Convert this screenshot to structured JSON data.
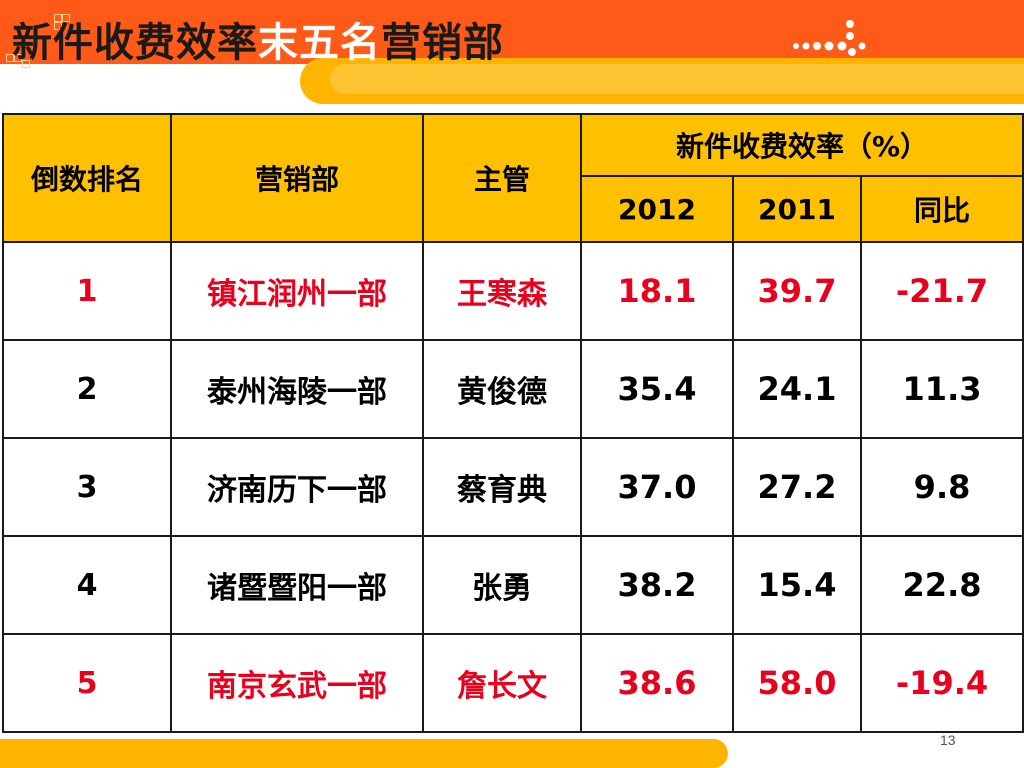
{
  "title": {
    "prefix": "新件收费效率",
    "highlight": "末五名",
    "suffix": "营销部"
  },
  "table": {
    "headers": {
      "rank": "倒数排名",
      "dept": "营销部",
      "manager": "主管",
      "efficiency_group": "新件收费效率（%）",
      "y2012": "2012",
      "y2011": "2011",
      "yoy": "同比"
    },
    "rows": [
      {
        "rank": "1",
        "dept": "镇江润州一部",
        "manager": "王寒森",
        "v2012": "18.1",
        "v2011": "39.7",
        "yoy": "-21.7",
        "highlight": true
      },
      {
        "rank": "2",
        "dept": "泰州海陵一部",
        "manager": "黄俊德",
        "v2012": "35.4",
        "v2011": "24.1",
        "yoy": "11.3",
        "highlight": false
      },
      {
        "rank": "3",
        "dept": "济南历下一部",
        "manager": "蔡育典",
        "v2012": "37.0",
        "v2011": "27.2",
        "yoy": "9.8",
        "highlight": false
      },
      {
        "rank": "4",
        "dept": "诸暨暨阳一部",
        "manager": "张勇",
        "v2012": "38.2",
        "v2011": "15.4",
        "yoy": "22.8",
        "highlight": false
      },
      {
        "rank": "5",
        "dept": "南京玄武一部",
        "manager": "詹长文",
        "v2012": "38.6",
        "v2011": "58.0",
        "yoy": "-19.4",
        "highlight": true
      }
    ]
  },
  "page_number": "13",
  "colors": {
    "header_band": "#ff5a17",
    "accent_yellow": "#ffb400",
    "table_header_bg": "#ffc000",
    "highlight_text": "#e8001c"
  }
}
